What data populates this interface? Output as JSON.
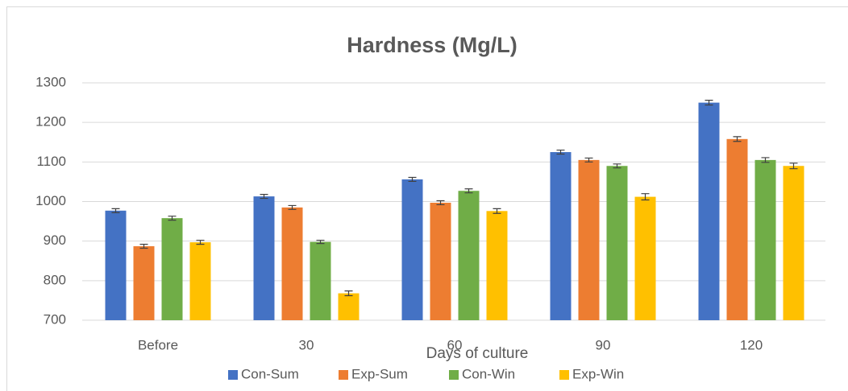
{
  "chart_data": {
    "type": "bar",
    "title": "Hardness (Mg/L)",
    "x_label": "Days of culture",
    "categories": [
      "Before",
      "30",
      "60",
      "90",
      "120"
    ],
    "series": [
      {
        "name": "Con-Sum",
        "color": "#4472c4",
        "values": [
          977,
          1013,
          1056,
          1125,
          1250
        ],
        "errors": [
          5,
          5,
          5,
          5,
          6
        ]
      },
      {
        "name": "Exp-Sum",
        "color": "#ed7d31",
        "values": [
          887,
          985,
          997,
          1105,
          1158
        ],
        "errors": [
          5,
          5,
          5,
          5,
          6
        ]
      },
      {
        "name": "Con-Win",
        "color": "#70ad47",
        "values": [
          958,
          898,
          1027,
          1090,
          1105
        ],
        "errors": [
          5,
          4,
          5,
          5,
          6
        ]
      },
      {
        "name": "Exp-Win",
        "color": "#ffc000",
        "values": [
          897,
          768,
          976,
          1012,
          1090
        ],
        "errors": [
          5,
          6,
          6,
          8,
          7
        ]
      }
    ],
    "ylim": [
      700,
      1300
    ],
    "yticks": [
      700,
      800,
      900,
      1000,
      1100,
      1200,
      1300
    ],
    "grid": true,
    "legend": "bottom"
  }
}
